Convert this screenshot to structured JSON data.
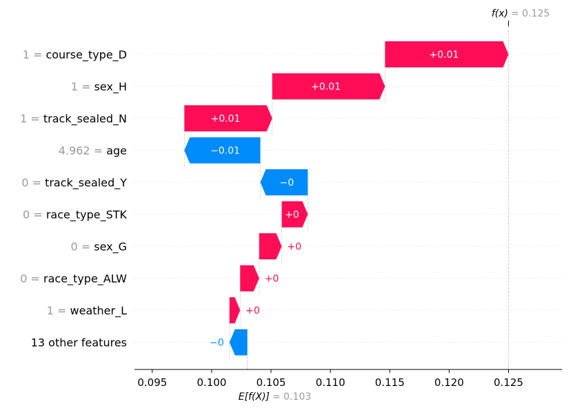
{
  "chart_data": {
    "type": "waterfall",
    "base_value": 0.103,
    "base_label": "E[f(X)]",
    "base_value_text": "= 0.103",
    "output_value": 0.125,
    "output_label": "f(x)",
    "output_value_text": "= 0.125",
    "xlim": [
      0.0935,
      0.1295
    ],
    "ticks": [
      0.095,
      0.1,
      0.105,
      0.11,
      0.115,
      0.12,
      0.125
    ],
    "tick_labels": [
      "0.095",
      "0.100",
      "0.105",
      "0.110",
      "0.115",
      "0.120",
      "0.125"
    ],
    "colors": {
      "positive": "#ff0d57",
      "negative": "#008bfb",
      "value_gray": "#999999"
    },
    "rows": [
      {
        "value_text": "1",
        "feature": "course_type_D",
        "start": 0.1146,
        "end": 0.125,
        "label": "+0.01"
      },
      {
        "value_text": "1",
        "feature": "sex_H",
        "start": 0.1051,
        "end": 0.1146,
        "label": "+0.01"
      },
      {
        "value_text": "1",
        "feature": "track_sealed_N",
        "start": 0.0977,
        "end": 0.1051,
        "label": "+0.01"
      },
      {
        "value_text": "4.962",
        "feature": "age",
        "start": 0.1041,
        "end": 0.0977,
        "label": "−0.01"
      },
      {
        "value_text": "0",
        "feature": "track_sealed_Y",
        "start": 0.1081,
        "end": 0.1041,
        "label": "−0"
      },
      {
        "value_text": "0",
        "feature": "race_type_STK",
        "start": 0.1059,
        "end": 0.1081,
        "label": "+0"
      },
      {
        "value_text": "0",
        "feature": "sex_G",
        "start": 0.104,
        "end": 0.1059,
        "label": "+0"
      },
      {
        "value_text": "0",
        "feature": "race_type_ALW",
        "start": 0.1024,
        "end": 0.104,
        "label": "+0"
      },
      {
        "value_text": "1",
        "feature": "weather_L",
        "start": 0.1015,
        "end": 0.1024,
        "label": "+0"
      },
      {
        "value_text": "",
        "feature": "13 other features",
        "start": 0.103,
        "end": 0.1015,
        "label": "−0"
      }
    ]
  }
}
